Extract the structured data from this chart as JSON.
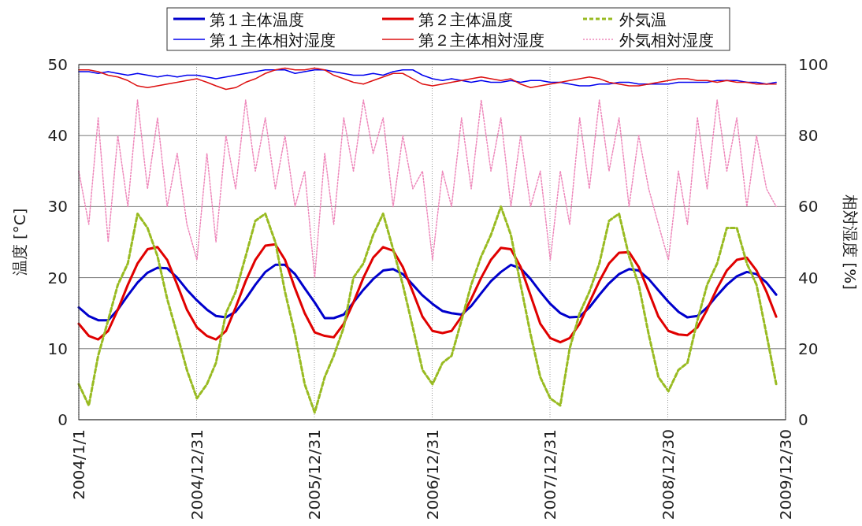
{
  "chart_data": {
    "type": "line",
    "ylabel": "温度 [°C]",
    "y2label": "相対湿度 [%]",
    "x": [
      "2004-01",
      "2004-02",
      "2004-03",
      "2004-04",
      "2004-05",
      "2004-06",
      "2004-07",
      "2004-08",
      "2004-09",
      "2004-10",
      "2004-11",
      "2004-12",
      "2005-01",
      "2005-02",
      "2005-03",
      "2005-04",
      "2005-05",
      "2005-06",
      "2005-07",
      "2005-08",
      "2005-09",
      "2005-10",
      "2005-11",
      "2005-12",
      "2006-01",
      "2006-02",
      "2006-03",
      "2006-04",
      "2006-05",
      "2006-06",
      "2006-07",
      "2006-08",
      "2006-09",
      "2006-10",
      "2006-11",
      "2006-12",
      "2007-01",
      "2007-02",
      "2007-03",
      "2007-04",
      "2007-05",
      "2007-06",
      "2007-07",
      "2007-08",
      "2007-09",
      "2007-10",
      "2007-11",
      "2007-12",
      "2008-01",
      "2008-02",
      "2008-03",
      "2008-04",
      "2008-05",
      "2008-06",
      "2008-07",
      "2008-08",
      "2008-09",
      "2008-10",
      "2008-11",
      "2008-12",
      "2009-01",
      "2009-02",
      "2009-03",
      "2009-04",
      "2009-05",
      "2009-06",
      "2009-07",
      "2009-08",
      "2009-09",
      "2009-10",
      "2009-11",
      "2009-12"
    ],
    "xlim": [
      "2004-01-01",
      "2009-12-30"
    ],
    "xticks": [
      {
        "value": "2004-01-01",
        "label": "2004/1/1"
      },
      {
        "value": "2004-12-31",
        "label": "2004/12/31"
      },
      {
        "value": "2005-12-31",
        "label": "2005/12/31"
      },
      {
        "value": "2006-12-31",
        "label": "2006/12/31"
      },
      {
        "value": "2007-12-31",
        "label": "2007/12/31"
      },
      {
        "value": "2008-12-30",
        "label": "2008/12/30"
      },
      {
        "value": "2009-12-30",
        "label": "2009/12/30"
      }
    ],
    "ylim": [
      0,
      50
    ],
    "yticks": [
      0,
      10,
      20,
      30,
      40,
      50
    ],
    "y2lim": [
      0,
      100
    ],
    "y2ticks": [
      0,
      20,
      40,
      60,
      80,
      100
    ],
    "grid": true,
    "legend": "top",
    "series": [
      {
        "name": "第１主体温度",
        "color": "#0000cc",
        "line_style": "solid",
        "values": [
          15.8,
          14.6,
          14.0,
          14.0,
          15.5,
          17.5,
          19.3,
          20.7,
          21.4,
          21.3,
          20.0,
          18.3,
          16.8,
          15.5,
          14.6,
          14.4,
          15.2,
          17.0,
          19.0,
          20.8,
          21.8,
          21.8,
          20.5,
          18.5,
          16.5,
          14.3,
          14.3,
          14.8,
          16.5,
          18.3,
          19.8,
          21.0,
          21.2,
          20.5,
          19.0,
          17.5,
          16.3,
          15.3,
          15.0,
          14.8,
          16.0,
          17.8,
          19.5,
          20.8,
          21.8,
          21.3,
          19.8,
          18.0,
          16.3,
          15.0,
          14.4,
          14.5,
          15.8,
          17.6,
          19.2,
          20.5,
          21.2,
          21.0,
          19.8,
          18.2,
          16.6,
          15.2,
          14.4,
          14.6,
          15.8,
          17.5,
          19.0,
          20.2,
          20.8,
          20.5,
          19.3,
          17.6
        ]
      },
      {
        "name": "第２主体温度",
        "color": "#e00000",
        "line_style": "solid",
        "values": [
          13.5,
          11.8,
          11.3,
          12.5,
          15.5,
          19.0,
          22.0,
          24.0,
          24.3,
          22.5,
          19.0,
          15.5,
          13.0,
          11.8,
          11.3,
          12.5,
          15.8,
          19.5,
          22.5,
          24.5,
          24.7,
          22.5,
          18.5,
          15.0,
          12.3,
          11.8,
          11.6,
          13.5,
          16.5,
          20.0,
          22.8,
          24.3,
          23.8,
          21.5,
          18.0,
          14.5,
          12.5,
          12.2,
          12.5,
          14.5,
          17.0,
          20.0,
          22.5,
          24.2,
          24.0,
          21.5,
          17.5,
          13.5,
          11.5,
          10.9,
          11.5,
          13.5,
          16.5,
          19.5,
          22.0,
          23.5,
          23.6,
          21.5,
          18.0,
          14.5,
          12.5,
          12.0,
          11.9,
          13.0,
          15.5,
          18.5,
          21.0,
          22.5,
          22.8,
          21.0,
          18.0,
          14.5
        ]
      },
      {
        "name": "外気温",
        "color": "#99bb22",
        "line_style": "dashed",
        "values": [
          5,
          2,
          9,
          14,
          19,
          22,
          29,
          27,
          23,
          17,
          12,
          7,
          3,
          5,
          8,
          15,
          18,
          23,
          28,
          29,
          25,
          18,
          12,
          5,
          1,
          6,
          9,
          13,
          20,
          22,
          26,
          29,
          24,
          19,
          13,
          7,
          5,
          8,
          9,
          14,
          19,
          23,
          26,
          30,
          26,
          19,
          12,
          6,
          3,
          2,
          10,
          15,
          18,
          22,
          28,
          29,
          23,
          19,
          12,
          6,
          4,
          7,
          8,
          14,
          19,
          22,
          27,
          27,
          22,
          19,
          12,
          5
        ]
      },
      {
        "name": "第１主体相対湿度",
        "color": "#0000ee",
        "axis": "y2",
        "line_style": "solid",
        "values": [
          98,
          98,
          97.5,
          98,
          97.5,
          97,
          97.5,
          97,
          96.5,
          97,
          96.5,
          97,
          97,
          96.5,
          96,
          96.5,
          97,
          97.5,
          98,
          98.5,
          98.5,
          98.5,
          97.5,
          98,
          98.5,
          98.5,
          98,
          97.5,
          97,
          97,
          97.5,
          97,
          98,
          98.5,
          98.5,
          97,
          96,
          95.5,
          96,
          95.5,
          95,
          95.5,
          95,
          95,
          95.5,
          95,
          95.5,
          95.5,
          95,
          95,
          94.5,
          94,
          94,
          94.5,
          94.5,
          95,
          95,
          94.5,
          94.5,
          94.5,
          94.5,
          95,
          95,
          95,
          95,
          95.5,
          95.5,
          95.5,
          95,
          95,
          94.5,
          95
        ]
      },
      {
        "name": "第２主体相対湿度",
        "color": "#dd1111",
        "axis": "y2",
        "line_style": "solid",
        "values": [
          98.5,
          98.5,
          98,
          97,
          96.5,
          95.5,
          94,
          93.5,
          94,
          94.5,
          95,
          95.5,
          96,
          95,
          94,
          93,
          93.5,
          95,
          96,
          97.5,
          98.5,
          99,
          98.5,
          98.5,
          99,
          98.5,
          97,
          96,
          95,
          94.5,
          95.5,
          96.5,
          97.5,
          97.5,
          96,
          94.5,
          94,
          94.5,
          95,
          95.5,
          96,
          96.5,
          96,
          95.5,
          96,
          94.5,
          93.5,
          94,
          94.5,
          95,
          95.5,
          96,
          96.5,
          96,
          95,
          94.5,
          94,
          94,
          94.5,
          95,
          95.5,
          96,
          96,
          95.5,
          95.5,
          95,
          95.5,
          95,
          95,
          94.5,
          94.5,
          94.5
        ]
      },
      {
        "name": "外気相対湿度",
        "color": "#ee88bb",
        "axis": "y2",
        "line_style": "dotted",
        "values": [
          70,
          55,
          85,
          50,
          80,
          60,
          90,
          65,
          85,
          60,
          75,
          55,
          45,
          75,
          50,
          80,
          65,
          90,
          70,
          85,
          65,
          80,
          60,
          70,
          40,
          75,
          55,
          85,
          70,
          90,
          75,
          85,
          60,
          80,
          65,
          70,
          45,
          70,
          60,
          85,
          65,
          90,
          70,
          85,
          60,
          80,
          60,
          70,
          45,
          70,
          55,
          85,
          65,
          90,
          70,
          85,
          60,
          80,
          65,
          55,
          45,
          70,
          55,
          85,
          65,
          90,
          70,
          85,
          60,
          80,
          65,
          60
        ]
      }
    ]
  }
}
